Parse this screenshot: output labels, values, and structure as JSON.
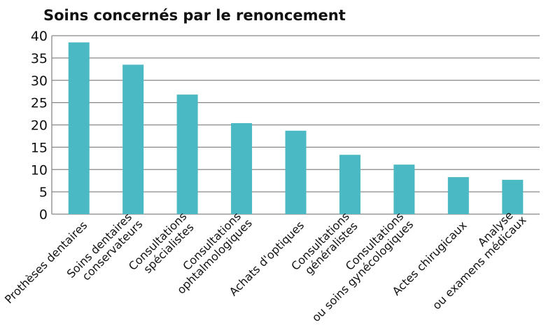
{
  "chart_data": {
    "type": "bar",
    "title": "Soins concernés par le renoncement",
    "xlabel": "",
    "ylabel": "",
    "ylim": [
      0,
      40
    ],
    "yticks": [
      "0",
      "5",
      "10",
      "15",
      "20",
      "25",
      "30",
      "35",
      "40"
    ],
    "grid": true,
    "bar_color": "#4ab9c4",
    "categories": [
      [
        "Prothèses dentaires"
      ],
      [
        "Soins dentaires",
        "conservateurs"
      ],
      [
        "Consultations",
        "spécialistes"
      ],
      [
        "Consultations",
        "ophtalmologiques"
      ],
      [
        "Achats d'optiques"
      ],
      [
        "Consultations",
        "généralistes"
      ],
      [
        "Consultations",
        "ou soins gynécologiques"
      ],
      [
        "Actes chirugicaux"
      ],
      [
        "Analyse",
        "ou examens médicaux"
      ]
    ],
    "values": [
      38.5,
      33.5,
      26.8,
      20.4,
      18.7,
      13.3,
      11.1,
      8.3,
      7.7
    ]
  }
}
